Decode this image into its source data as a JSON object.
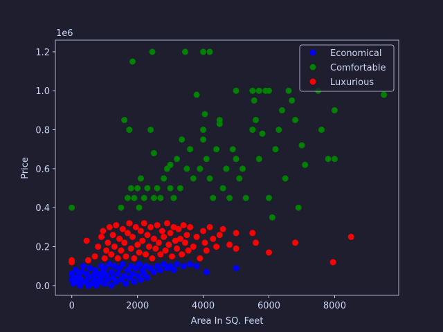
{
  "chart_data": {
    "type": "scatter",
    "xlabel": "Area In SQ. Feet",
    "ylabel": "Price",
    "y_multiplier": "1e6",
    "xlim": [
      -500,
      9950
    ],
    "ylim": [
      -0.05,
      1.26
    ],
    "x_ticks": [
      0,
      2000,
      4000,
      6000,
      8000
    ],
    "x_tick_labels": [
      "0",
      "2000",
      "4000",
      "6000",
      "8000"
    ],
    "y_ticks": [
      0.0,
      0.2,
      0.4,
      0.6,
      0.8,
      1.0,
      1.2
    ],
    "y_tick_labels": [
      "0.0",
      "0.2",
      "0.4",
      "0.6",
      "0.8",
      "1.0",
      "1.2"
    ],
    "grid": false,
    "legend_position": "top-right",
    "colors": {
      "background": "#1e1e2e",
      "axes": "#cdd6f4"
    },
    "series": [
      {
        "name": "Economical",
        "color": "#0000ff",
        "points": [
          [
            0,
            0.03
          ],
          [
            0,
            0.06
          ],
          [
            50,
            0.01
          ],
          [
            100,
            0.04
          ],
          [
            120,
            0.08
          ],
          [
            150,
            0.02
          ],
          [
            200,
            0.05
          ],
          [
            250,
            0.0
          ],
          [
            300,
            0.07
          ],
          [
            300,
            0.03
          ],
          [
            350,
            0.1
          ],
          [
            400,
            0.02
          ],
          [
            450,
            0.06
          ],
          [
            500,
            0.0
          ],
          [
            500,
            0.04
          ],
          [
            550,
            0.09
          ],
          [
            600,
            0.01
          ],
          [
            650,
            0.05
          ],
          [
            700,
            0.03
          ],
          [
            700,
            0.08
          ],
          [
            750,
            0.0
          ],
          [
            800,
            0.06
          ],
          [
            850,
            0.02
          ],
          [
            900,
            0.1
          ],
          [
            900,
            0.04
          ],
          [
            950,
            0.07
          ],
          [
            1000,
            0.01
          ],
          [
            1000,
            0.09
          ],
          [
            1050,
            0.05
          ],
          [
            1100,
            0.03
          ],
          [
            1150,
            0.11
          ],
          [
            1200,
            0.0
          ],
          [
            1200,
            0.07
          ],
          [
            1250,
            0.04
          ],
          [
            1300,
            0.1
          ],
          [
            1350,
            0.02
          ],
          [
            1400,
            0.06
          ],
          [
            1450,
            0.09
          ],
          [
            1500,
            0.03
          ],
          [
            1550,
            0.11
          ],
          [
            1600,
            0.05
          ],
          [
            1650,
            0.01
          ],
          [
            1700,
            0.08
          ],
          [
            1750,
            0.04
          ],
          [
            1800,
            0.1
          ],
          [
            1850,
            0.06
          ],
          [
            1900,
            0.02
          ],
          [
            1950,
            0.09
          ],
          [
            2000,
            0.05
          ],
          [
            2050,
            0.11
          ],
          [
            2100,
            0.03
          ],
          [
            2150,
            0.08
          ],
          [
            2200,
            0.06
          ],
          [
            2250,
            0.1
          ],
          [
            2300,
            0.04
          ],
          [
            2400,
            0.09
          ],
          [
            2500,
            0.07
          ],
          [
            2600,
            0.1
          ],
          [
            2700,
            0.08
          ],
          [
            2800,
            0.11
          ],
          [
            2900,
            0.09
          ],
          [
            3000,
            0.1
          ],
          [
            3100,
            0.08
          ],
          [
            3200,
            0.11
          ],
          [
            3400,
            0.1
          ],
          [
            3600,
            0.11
          ],
          [
            3800,
            0.1
          ],
          [
            4100,
            0.07
          ],
          [
            5000,
            0.09
          ]
        ]
      },
      {
        "name": "Comfortable",
        "color": "#008000",
        "points": [
          [
            0,
            0.4
          ],
          [
            1500,
            0.4
          ],
          [
            1600,
            0.85
          ],
          [
            1700,
            0.45
          ],
          [
            1750,
            0.8
          ],
          [
            1800,
            0.5
          ],
          [
            1850,
            1.15
          ],
          [
            1900,
            0.45
          ],
          [
            2000,
            0.5
          ],
          [
            2050,
            0.4
          ],
          [
            2100,
            0.55
          ],
          [
            2200,
            0.45
          ],
          [
            2300,
            0.5
          ],
          [
            2400,
            0.8
          ],
          [
            2450,
            1.2
          ],
          [
            2500,
            0.68
          ],
          [
            2500,
            0.45
          ],
          [
            2600,
            0.5
          ],
          [
            2700,
            0.45
          ],
          [
            2800,
            0.55
          ],
          [
            2900,
            0.6
          ],
          [
            3000,
            0.5
          ],
          [
            3000,
            0.62
          ],
          [
            3100,
            0.45
          ],
          [
            3200,
            0.65
          ],
          [
            3300,
            0.5
          ],
          [
            3350,
            0.75
          ],
          [
            3450,
            1.2
          ],
          [
            3500,
            0.6
          ],
          [
            3600,
            0.7
          ],
          [
            3700,
            0.55
          ],
          [
            3800,
            0.98
          ],
          [
            3900,
            0.6
          ],
          [
            4000,
            0.75
          ],
          [
            4000,
            0.8
          ],
          [
            4000,
            1.2
          ],
          [
            4050,
            0.88
          ],
          [
            4100,
            0.65
          ],
          [
            4200,
            1.2
          ],
          [
            4200,
            0.55
          ],
          [
            4300,
            0.45
          ],
          [
            4400,
            0.7
          ],
          [
            4500,
            0.83
          ],
          [
            4500,
            0.85
          ],
          [
            4600,
            0.5
          ],
          [
            4700,
            0.6
          ],
          [
            4800,
            0.45
          ],
          [
            4900,
            0.7
          ],
          [
            5000,
            1.0
          ],
          [
            5000,
            0.65
          ],
          [
            5100,
            0.55
          ],
          [
            5200,
            0.6
          ],
          [
            5300,
            0.45
          ],
          [
            5500,
            0.8
          ],
          [
            5500,
            1.0
          ],
          [
            5550,
            0.95
          ],
          [
            5600,
            0.85
          ],
          [
            5700,
            1.0
          ],
          [
            5700,
            0.65
          ],
          [
            5800,
            0.78
          ],
          [
            5900,
            1.0
          ],
          [
            6000,
            0.45
          ],
          [
            6000,
            1.0
          ],
          [
            6100,
            0.35
          ],
          [
            6200,
            0.7
          ],
          [
            6300,
            0.8
          ],
          [
            6400,
            0.9
          ],
          [
            6500,
            0.55
          ],
          [
            6600,
            1.0
          ],
          [
            6700,
            0.95
          ],
          [
            6800,
            0.85
          ],
          [
            6900,
            0.4
          ],
          [
            7000,
            0.72
          ],
          [
            7100,
            0.62
          ],
          [
            7500,
            1.0
          ],
          [
            7600,
            0.8
          ],
          [
            7800,
            0.65
          ],
          [
            8000,
            0.9
          ],
          [
            8000,
            0.65
          ],
          [
            9500,
            0.98
          ]
        ]
      },
      {
        "name": "Luxurious",
        "color": "#ff0000",
        "points": [
          [
            0,
            0.12
          ],
          [
            0,
            0.13
          ],
          [
            450,
            0.23
          ],
          [
            500,
            0.13
          ],
          [
            700,
            0.15
          ],
          [
            800,
            0.2
          ],
          [
            900,
            0.25
          ],
          [
            950,
            0.28
          ],
          [
            1000,
            0.14
          ],
          [
            1050,
            0.18
          ],
          [
            1100,
            0.22
          ],
          [
            1150,
            0.3
          ],
          [
            1200,
            0.16
          ],
          [
            1250,
            0.26
          ],
          [
            1300,
            0.2
          ],
          [
            1350,
            0.31
          ],
          [
            1400,
            0.14
          ],
          [
            1450,
            0.24
          ],
          [
            1500,
            0.18
          ],
          [
            1550,
            0.29
          ],
          [
            1600,
            0.22
          ],
          [
            1650,
            0.15
          ],
          [
            1700,
            0.27
          ],
          [
            1750,
            0.32
          ],
          [
            1800,
            0.19
          ],
          [
            1850,
            0.25
          ],
          [
            1900,
            0.14
          ],
          [
            1950,
            0.3
          ],
          [
            2000,
            0.21
          ],
          [
            2050,
            0.17
          ],
          [
            2100,
            0.28
          ],
          [
            2150,
            0.23
          ],
          [
            2200,
            0.32
          ],
          [
            2250,
            0.16
          ],
          [
            2300,
            0.26
          ],
          [
            2350,
            0.2
          ],
          [
            2400,
            0.3
          ],
          [
            2450,
            0.14
          ],
          [
            2500,
            0.24
          ],
          [
            2550,
            0.19
          ],
          [
            2600,
            0.31
          ],
          [
            2650,
            0.22
          ],
          [
            2700,
            0.16
          ],
          [
            2750,
            0.28
          ],
          [
            2800,
            0.25
          ],
          [
            2850,
            0.18
          ],
          [
            2900,
            0.32
          ],
          [
            2950,
            0.21
          ],
          [
            3000,
            0.27
          ],
          [
            3050,
            0.15
          ],
          [
            3100,
            0.3
          ],
          [
            3150,
            0.23
          ],
          [
            3200,
            0.19
          ],
          [
            3250,
            0.29
          ],
          [
            3300,
            0.24
          ],
          [
            3350,
            0.16
          ],
          [
            3400,
            0.31
          ],
          [
            3450,
            0.22
          ],
          [
            3500,
            0.26
          ],
          [
            3550,
            0.18
          ],
          [
            3600,
            0.3
          ],
          [
            3700,
            0.2
          ],
          [
            3800,
            0.25
          ],
          [
            3900,
            0.14
          ],
          [
            4000,
            0.28
          ],
          [
            4050,
            0.22
          ],
          [
            4100,
            0.18
          ],
          [
            4200,
            0.3
          ],
          [
            4300,
            0.24
          ],
          [
            4400,
            0.2
          ],
          [
            4500,
            0.26
          ],
          [
            4600,
            0.29
          ],
          [
            4800,
            0.21
          ],
          [
            5000,
            0.19
          ],
          [
            5000,
            0.27
          ],
          [
            5500,
            0.27
          ],
          [
            5600,
            0.22
          ],
          [
            6000,
            0.17
          ],
          [
            6800,
            0.22
          ],
          [
            7950,
            0.12
          ],
          [
            8500,
            0.25
          ]
        ]
      }
    ]
  }
}
